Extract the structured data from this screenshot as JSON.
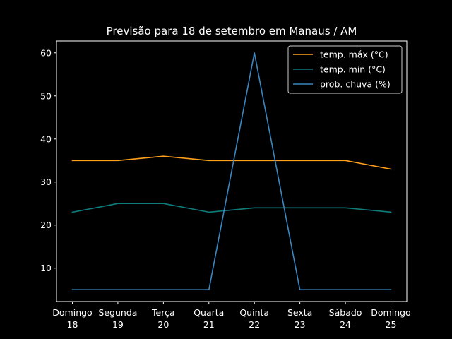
{
  "chart_data": {
    "type": "line",
    "title": "Previsão para 18 de setembro em Manaus / AM",
    "xlabel": "",
    "ylabel": "",
    "categories": [
      {
        "day": "Domingo",
        "date": "18"
      },
      {
        "day": "Segunda",
        "date": "19"
      },
      {
        "day": "Terça",
        "date": "20"
      },
      {
        "day": "Quarta",
        "date": "21"
      },
      {
        "day": "Quinta",
        "date": "22"
      },
      {
        "day": "Sexta",
        "date": "23"
      },
      {
        "day": "Sábado",
        "date": "24"
      },
      {
        "day": "Domingo",
        "date": "25"
      }
    ],
    "yticks": [
      10,
      20,
      30,
      40,
      50,
      60
    ],
    "ylim": [
      2.25,
      62.75
    ],
    "grid": false,
    "legend_position": "top-right",
    "series": [
      {
        "name": "temp. máx (°C)",
        "color": "#ff9f1c",
        "values": [
          35,
          35,
          36,
          35,
          35,
          35,
          35,
          33
        ]
      },
      {
        "name": "temp. min (°C)",
        "color": "#0e7c7b",
        "values": [
          23,
          25,
          25,
          23,
          24,
          24,
          24,
          23
        ]
      },
      {
        "name": "prob. chuva (%)",
        "color": "#3a86c0",
        "values": [
          5,
          5,
          5,
          5,
          60,
          5,
          5,
          5
        ]
      }
    ]
  }
}
